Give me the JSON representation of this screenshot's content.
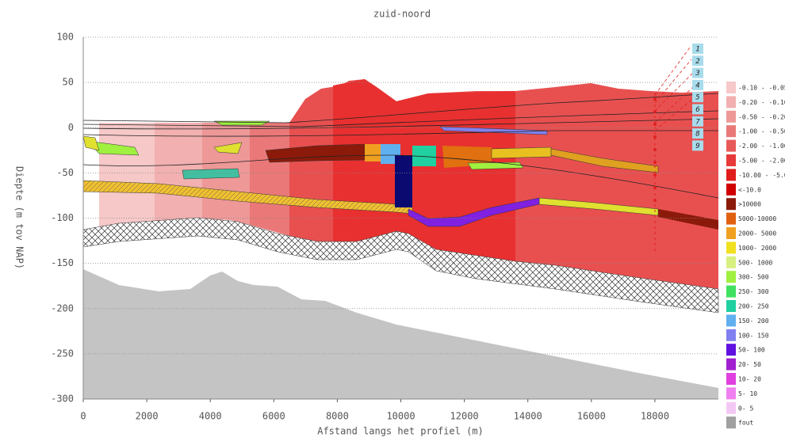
{
  "chart_data": {
    "type": "cross-section",
    "title": "zuid-noord",
    "x_label": "Afstand langs het profiel (m)",
    "y_label": "Diepte (m tov NAP)",
    "xlim": [
      0,
      20000
    ],
    "ylim": [
      -300,
      100
    ],
    "xticks": [
      0,
      2000,
      4000,
      6000,
      8000,
      10000,
      12000,
      14000,
      16000,
      18000
    ],
    "yticks": [
      -300,
      -250,
      -200,
      -150,
      -100,
      -50,
      0,
      50,
      100
    ],
    "grid": true,
    "wells": [
      "1",
      "2",
      "3",
      "4",
      "5",
      "6",
      "7",
      "8",
      "9"
    ],
    "legend": [
      {
        "label": "-0.10 - -0.05",
        "color": "#f6c8c8"
      },
      {
        "label": "-0.20 - -0.10",
        "color": "#f2b0b0"
      },
      {
        "label": "-0.50 - -0.20",
        "color": "#ee9898"
      },
      {
        "label": "-1.00 - -0.50",
        "color": "#ea7878"
      },
      {
        "label": "-2.00 - -1.00",
        "color": "#e85a5a"
      },
      {
        "label": "-5.00 - -2.00",
        "color": "#e83a3a"
      },
      {
        "label": "-10.00 - -5.00",
        "color": "#e01c1c"
      },
      {
        "label": "<-10.0",
        "color": "#d00000"
      },
      {
        "label": ">10000",
        "color": "#8b1a0a"
      },
      {
        "label": "5000-10000",
        "color": "#e06010"
      },
      {
        "label": "2000- 5000",
        "color": "#f0a020"
      },
      {
        "label": "1000- 2000",
        "color": "#f0e020"
      },
      {
        "label": "500- 1000",
        "color": "#d8f080"
      },
      {
        "label": "300- 500",
        "color": "#a0f040"
      },
      {
        "label": "250- 300",
        "color": "#40e060"
      },
      {
        "label": "200- 250",
        "color": "#20d0a0"
      },
      {
        "label": "150- 200",
        "color": "#60b0f0"
      },
      {
        "label": "100- 150",
        "color": "#8080f0"
      },
      {
        "label": "50- 100",
        "color": "#6010e0"
      },
      {
        "label": "20- 50",
        "color": "#a020d0"
      },
      {
        "label": "10- 20",
        "color": "#e040e0"
      },
      {
        "label": "5- 10",
        "color": "#f080f0"
      },
      {
        "label": "0- 5",
        "color": "#f4c8f4"
      },
      {
        "label": "fout",
        "color": "#a0a0a0"
      }
    ]
  }
}
